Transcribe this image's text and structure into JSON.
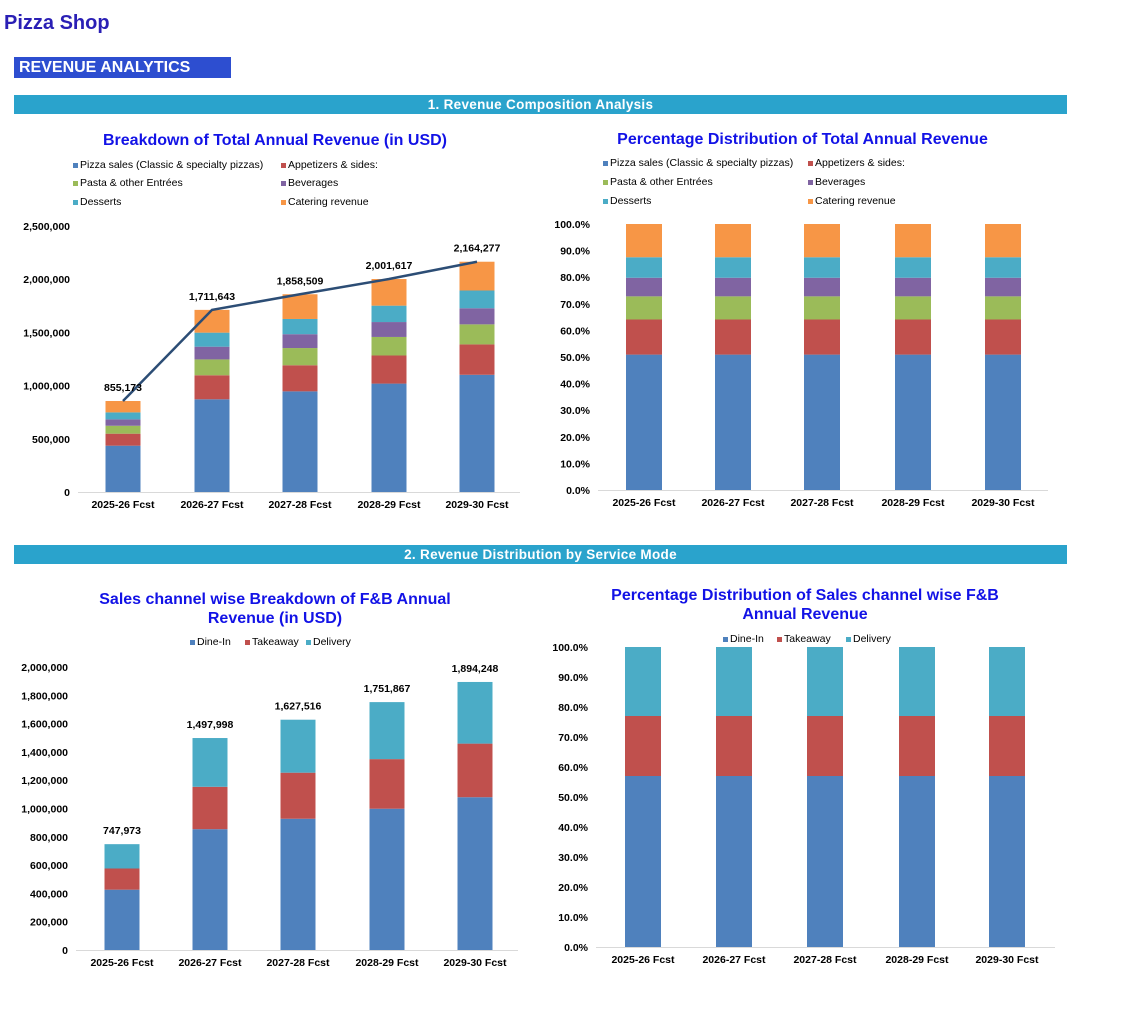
{
  "app_title": "Pizza Shop",
  "section_badge": "REVENUE ANALYTICS",
  "bands": [
    "1.  Revenue Composition Analysis",
    "2. Revenue Distribution by Service Mode"
  ],
  "colors": {
    "pizza": "#4f81bd",
    "appetizers": "#c0504d",
    "pasta": "#9bbb59",
    "beverages": "#8064a2",
    "desserts": "#4bacc6",
    "catering": "#f79646",
    "line": "#2c4d75",
    "band": "#2aa3cc",
    "title": "#1212e6"
  },
  "chart_data": [
    {
      "type": "bar",
      "stacked": true,
      "title": "Breakdown of Total Annual Revenue (in USD)",
      "categories": [
        "2025-26 Fcst",
        "2026-27 Fcst",
        "2027-28 Fcst",
        "2028-29 Fcst",
        "2029-30 Fcst"
      ],
      "yticks": [
        "0",
        "500,000",
        "1,000,000",
        "1,500,000",
        "2,000,000",
        "2,500,000"
      ],
      "ylim": [
        0,
        2500000
      ],
      "legend_position": "top",
      "series": [
        {
          "name": "Pizza sales (Classic & specialty pizzas)",
          "color": "#4f81bd",
          "values": [
            435283,
            871226,
            945981,
            1018823,
            1101617
          ]
        },
        {
          "name": "Appetizers & sides:",
          "color": "#c0504d",
          "values": [
            112883,
            225937,
            245323,
            264213,
            285685
          ]
        },
        {
          "name": "Pasta & other Entrées",
          "color": "#9bbb59",
          "values": [
            74400,
            148913,
            161690,
            174141,
            188292
          ]
        },
        {
          "name": "Beverages",
          "color": "#8064a2",
          "values": [
            59862,
            119815,
            130096,
            140113,
            151499
          ]
        },
        {
          "name": "Desserts",
          "color": "#4bacc6",
          "values": [
            65848,
            131796,
            143105,
            154125,
            166649
          ]
        },
        {
          "name": "Catering revenue",
          "color": "#f79646",
          "values": [
            106897,
            213956,
            232314,
            250202,
            270535
          ]
        }
      ],
      "total_line": {
        "color": "#2c4d75",
        "values": [
          855173,
          1711643,
          1858509,
          2001617,
          2164277
        ],
        "labels": [
          "855,173",
          "1,711,643",
          "1,858,509",
          "2,001,617",
          "2,164,277"
        ]
      }
    },
    {
      "type": "bar",
      "stacked": true,
      "percent": true,
      "title": "Percentage Distribution of Total Annual Revenue",
      "categories": [
        "2025-26 Fcst",
        "2026-27 Fcst",
        "2027-28 Fcst",
        "2028-29 Fcst",
        "2029-30 Fcst"
      ],
      "yticks": [
        "0.0%",
        "10.0%",
        "20.0%",
        "30.0%",
        "40.0%",
        "50.0%",
        "60.0%",
        "70.0%",
        "80.0%",
        "90.0%",
        "100.0%"
      ],
      "ylim": [
        0,
        100
      ],
      "legend_position": "top",
      "series": [
        {
          "name": "Pizza sales (Classic & specialty pizzas)",
          "color": "#4f81bd",
          "values": [
            50.9,
            50.9,
            50.9,
            50.9,
            50.9
          ]
        },
        {
          "name": "Appetizers & sides:",
          "color": "#c0504d",
          "values": [
            13.2,
            13.2,
            13.2,
            13.2,
            13.2
          ]
        },
        {
          "name": "Pasta & other Entrées",
          "color": "#9bbb59",
          "values": [
            8.7,
            8.7,
            8.7,
            8.7,
            8.7
          ]
        },
        {
          "name": "Beverages",
          "color": "#8064a2",
          "values": [
            7.0,
            7.0,
            7.0,
            7.0,
            7.0
          ]
        },
        {
          "name": "Desserts",
          "color": "#4bacc6",
          "values": [
            7.7,
            7.7,
            7.7,
            7.7,
            7.7
          ]
        },
        {
          "name": "Catering revenue",
          "color": "#f79646",
          "values": [
            12.5,
            12.5,
            12.5,
            12.5,
            12.5
          ]
        }
      ]
    },
    {
      "type": "bar",
      "stacked": true,
      "title": "Sales channel wise Breakdown of F&B Annual Revenue (in USD)",
      "categories": [
        "2025-26 Fcst",
        "2026-27 Fcst",
        "2027-28 Fcst",
        "2028-29 Fcst",
        "2029-30 Fcst"
      ],
      "yticks": [
        "0",
        "200,000",
        "400,000",
        "600,000",
        "800,000",
        "1,000,000",
        "1,200,000",
        "1,400,000",
        "1,600,000",
        "1,800,000",
        "2,000,000"
      ],
      "ylim": [
        0,
        2000000
      ],
      "legend_position": "top",
      "series": [
        {
          "name": "Dine-In",
          "color": "#4f81bd",
          "values": [
            426345,
            853859,
            927684,
            998564,
            1079721
          ]
        },
        {
          "name": "Takeaway",
          "color": "#c0504d",
          "values": [
            149595,
            299600,
            325503,
            350373,
            378850
          ]
        },
        {
          "name": "Delivery",
          "color": "#4bacc6",
          "values": [
            172033,
            344539,
            374329,
            402930,
            435677
          ]
        }
      ],
      "total_labels": [
        "747,973",
        "1,497,998",
        "1,627,516",
        "1,751,867",
        "1,894,248"
      ]
    },
    {
      "type": "bar",
      "stacked": true,
      "percent": true,
      "title": "Percentage Distribution of Sales channel wise F&B Annual Revenue",
      "categories": [
        "2025-26 Fcst",
        "2026-27 Fcst",
        "2027-28 Fcst",
        "2028-29 Fcst",
        "2029-30 Fcst"
      ],
      "yticks": [
        "0.0%",
        "10.0%",
        "20.0%",
        "30.0%",
        "40.0%",
        "50.0%",
        "60.0%",
        "70.0%",
        "80.0%",
        "90.0%",
        "100.0%"
      ],
      "ylim": [
        0,
        100
      ],
      "legend_position": "top",
      "series": [
        {
          "name": "Dine-In",
          "color": "#4f81bd",
          "values": [
            57,
            57,
            57,
            57,
            57
          ]
        },
        {
          "name": "Takeaway",
          "color": "#c0504d",
          "values": [
            20,
            20,
            20,
            20,
            20
          ]
        },
        {
          "name": "Delivery",
          "color": "#4bacc6",
          "values": [
            23,
            23,
            23,
            23,
            23
          ]
        }
      ]
    }
  ]
}
